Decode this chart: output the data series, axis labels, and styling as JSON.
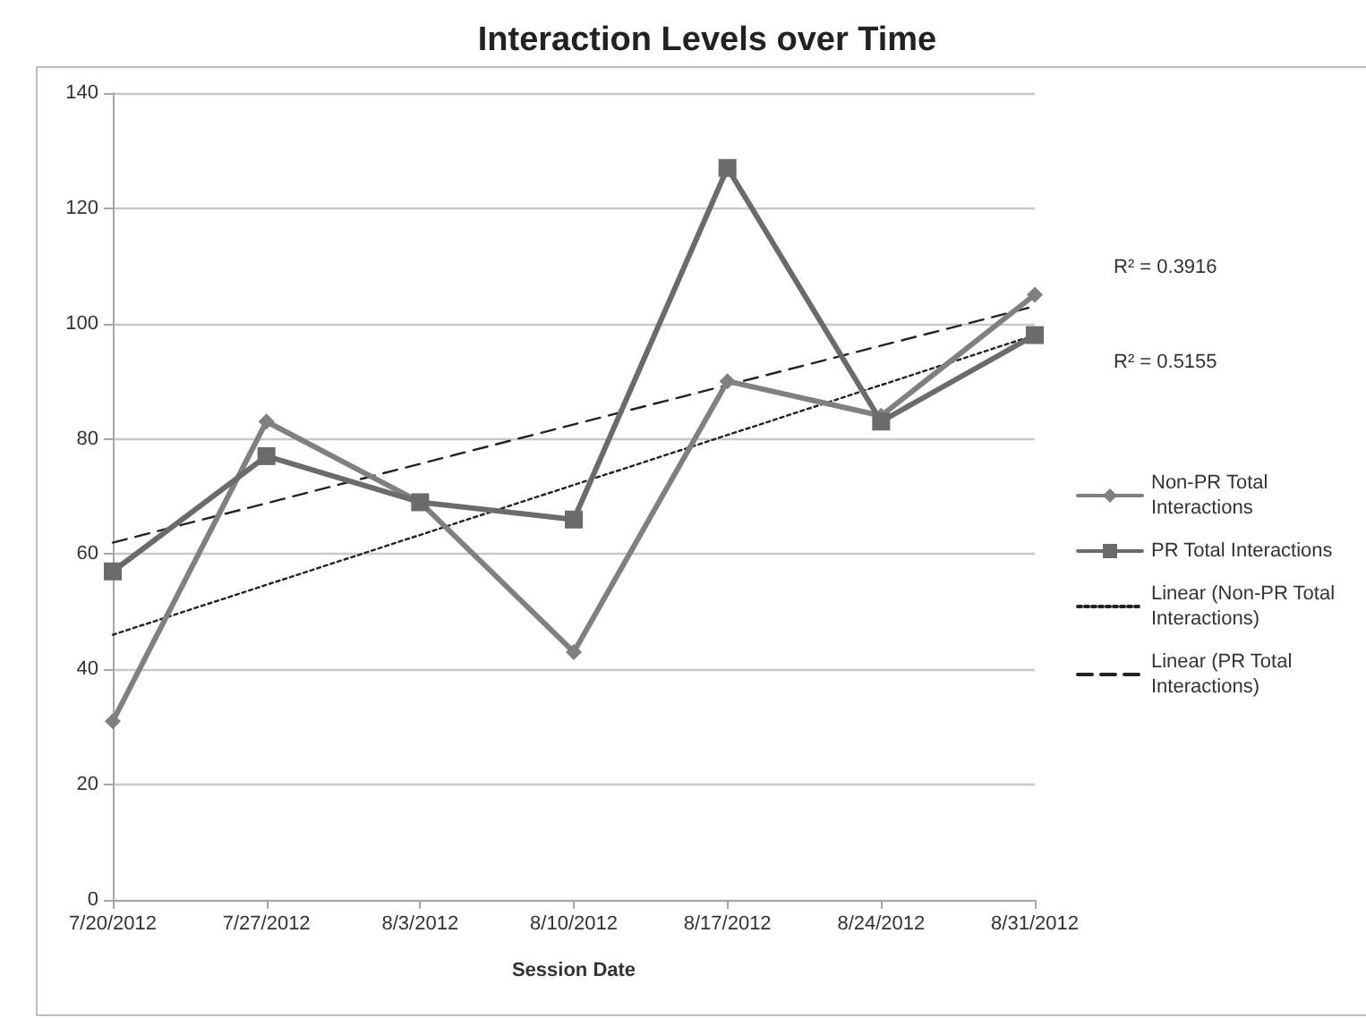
{
  "chart_data": {
    "type": "line",
    "title": "Interaction Levels over Time",
    "xlabel": "Session Date",
    "categories": [
      "7/20/2012",
      "7/27/2012",
      "8/3/2012",
      "8/10/2012",
      "8/17/2012",
      "8/24/2012",
      "8/31/2012"
    ],
    "series": [
      {
        "name": "Non-PR Total Interactions",
        "color": "#808080",
        "marker": "diamond",
        "line_style": "solid",
        "values": [
          31,
          83,
          69,
          43,
          90,
          84,
          105
        ]
      },
      {
        "name": "PR Total Interactions",
        "color": "#6b6b6b",
        "marker": "square",
        "line_style": "solid",
        "values": [
          57,
          77,
          69,
          66,
          127,
          83,
          98
        ]
      },
      {
        "name": "Linear (Non-PR Total Interactions)",
        "color": "#222222",
        "marker": "none",
        "line_style": "dotted",
        "x": [
          "7/20/2012",
          "8/31/2012"
        ],
        "values": [
          46,
          98
        ]
      },
      {
        "name": "Linear (PR Total Interactions)",
        "color": "#222222",
        "marker": "none",
        "line_style": "dashed",
        "x": [
          "7/20/2012",
          "8/31/2012"
        ],
        "values": [
          62,
          103
        ]
      }
    ],
    "ylim": [
      0,
      140
    ],
    "yticks": [
      0,
      20,
      40,
      60,
      80,
      100,
      120,
      140
    ],
    "grid": "y",
    "legend": "right",
    "annotations": [
      "R² = 0.3916",
      "R² = 0.5155"
    ]
  }
}
